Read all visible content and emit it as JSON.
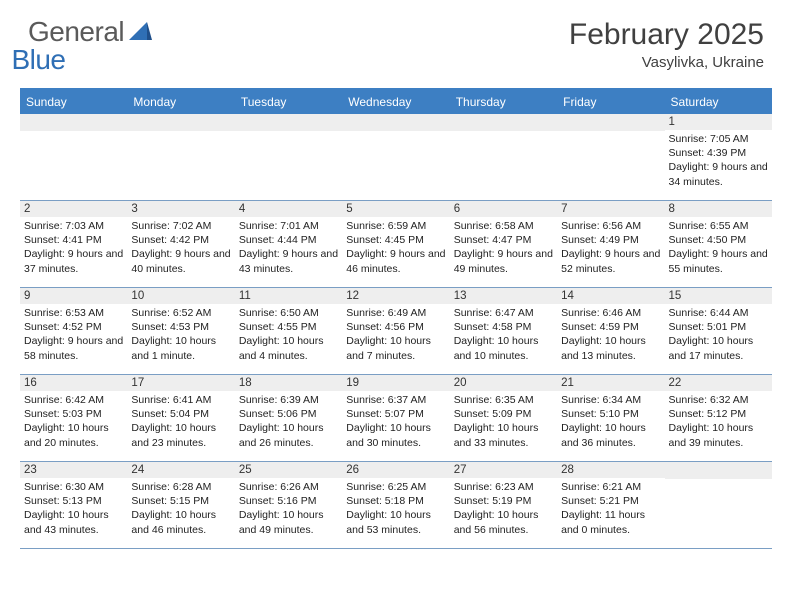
{
  "brand": {
    "name_gray": "General",
    "name_blue": "Blue"
  },
  "title": "February 2025",
  "location": "Vasylivka, Ukraine",
  "colors": {
    "header_bar": "#3d7fc3",
    "daynum_bg": "#eeeeee",
    "week_border": "#7a9ec4",
    "text": "#333333",
    "brand_gray": "#5a5a5a",
    "brand_blue": "#2f6fb5"
  },
  "weekdays": [
    "Sunday",
    "Monday",
    "Tuesday",
    "Wednesday",
    "Thursday",
    "Friday",
    "Saturday"
  ],
  "weeks": [
    [
      null,
      null,
      null,
      null,
      null,
      null,
      {
        "n": "1",
        "sunrise": "7:05 AM",
        "sunset": "4:39 PM",
        "daylight": "9 hours and 34 minutes."
      }
    ],
    [
      {
        "n": "2",
        "sunrise": "7:03 AM",
        "sunset": "4:41 PM",
        "daylight": "9 hours and 37 minutes."
      },
      {
        "n": "3",
        "sunrise": "7:02 AM",
        "sunset": "4:42 PM",
        "daylight": "9 hours and 40 minutes."
      },
      {
        "n": "4",
        "sunrise": "7:01 AM",
        "sunset": "4:44 PM",
        "daylight": "9 hours and 43 minutes."
      },
      {
        "n": "5",
        "sunrise": "6:59 AM",
        "sunset": "4:45 PM",
        "daylight": "9 hours and 46 minutes."
      },
      {
        "n": "6",
        "sunrise": "6:58 AM",
        "sunset": "4:47 PM",
        "daylight": "9 hours and 49 minutes."
      },
      {
        "n": "7",
        "sunrise": "6:56 AM",
        "sunset": "4:49 PM",
        "daylight": "9 hours and 52 minutes."
      },
      {
        "n": "8",
        "sunrise": "6:55 AM",
        "sunset": "4:50 PM",
        "daylight": "9 hours and 55 minutes."
      }
    ],
    [
      {
        "n": "9",
        "sunrise": "6:53 AM",
        "sunset": "4:52 PM",
        "daylight": "9 hours and 58 minutes."
      },
      {
        "n": "10",
        "sunrise": "6:52 AM",
        "sunset": "4:53 PM",
        "daylight": "10 hours and 1 minute."
      },
      {
        "n": "11",
        "sunrise": "6:50 AM",
        "sunset": "4:55 PM",
        "daylight": "10 hours and 4 minutes."
      },
      {
        "n": "12",
        "sunrise": "6:49 AM",
        "sunset": "4:56 PM",
        "daylight": "10 hours and 7 minutes."
      },
      {
        "n": "13",
        "sunrise": "6:47 AM",
        "sunset": "4:58 PM",
        "daylight": "10 hours and 10 minutes."
      },
      {
        "n": "14",
        "sunrise": "6:46 AM",
        "sunset": "4:59 PM",
        "daylight": "10 hours and 13 minutes."
      },
      {
        "n": "15",
        "sunrise": "6:44 AM",
        "sunset": "5:01 PM",
        "daylight": "10 hours and 17 minutes."
      }
    ],
    [
      {
        "n": "16",
        "sunrise": "6:42 AM",
        "sunset": "5:03 PM",
        "daylight": "10 hours and 20 minutes."
      },
      {
        "n": "17",
        "sunrise": "6:41 AM",
        "sunset": "5:04 PM",
        "daylight": "10 hours and 23 minutes."
      },
      {
        "n": "18",
        "sunrise": "6:39 AM",
        "sunset": "5:06 PM",
        "daylight": "10 hours and 26 minutes."
      },
      {
        "n": "19",
        "sunrise": "6:37 AM",
        "sunset": "5:07 PM",
        "daylight": "10 hours and 30 minutes."
      },
      {
        "n": "20",
        "sunrise": "6:35 AM",
        "sunset": "5:09 PM",
        "daylight": "10 hours and 33 minutes."
      },
      {
        "n": "21",
        "sunrise": "6:34 AM",
        "sunset": "5:10 PM",
        "daylight": "10 hours and 36 minutes."
      },
      {
        "n": "22",
        "sunrise": "6:32 AM",
        "sunset": "5:12 PM",
        "daylight": "10 hours and 39 minutes."
      }
    ],
    [
      {
        "n": "23",
        "sunrise": "6:30 AM",
        "sunset": "5:13 PM",
        "daylight": "10 hours and 43 minutes."
      },
      {
        "n": "24",
        "sunrise": "6:28 AM",
        "sunset": "5:15 PM",
        "daylight": "10 hours and 46 minutes."
      },
      {
        "n": "25",
        "sunrise": "6:26 AM",
        "sunset": "5:16 PM",
        "daylight": "10 hours and 49 minutes."
      },
      {
        "n": "26",
        "sunrise": "6:25 AM",
        "sunset": "5:18 PM",
        "daylight": "10 hours and 53 minutes."
      },
      {
        "n": "27",
        "sunrise": "6:23 AM",
        "sunset": "5:19 PM",
        "daylight": "10 hours and 56 minutes."
      },
      {
        "n": "28",
        "sunrise": "6:21 AM",
        "sunset": "5:21 PM",
        "daylight": "11 hours and 0 minutes."
      },
      null
    ]
  ],
  "labels": {
    "sunrise": "Sunrise:",
    "sunset": "Sunset:",
    "daylight": "Daylight:"
  }
}
